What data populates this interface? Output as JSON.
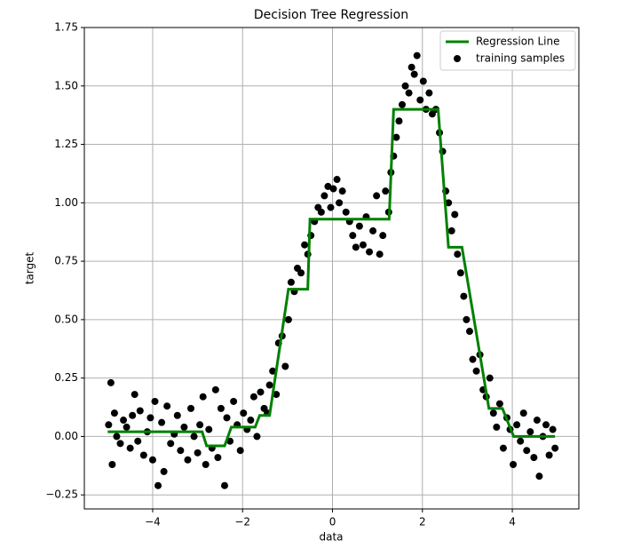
{
  "chart_data": {
    "type": "scatter",
    "title": "Decision Tree Regression",
    "x_label": "data",
    "y_label": "target",
    "xlim": [
      -5.52,
      5.48
    ],
    "ylim": [
      -0.31,
      1.75
    ],
    "xticks": [
      {
        "value": -4,
        "label": "−4"
      },
      {
        "value": -2,
        "label": "−2"
      },
      0,
      2,
      4
    ],
    "yticks": [
      {
        "value": -0.25,
        "label": "−0.25"
      },
      {
        "value": 0,
        "label": "0.00"
      },
      0.25,
      {
        "value": 0.5,
        "label": "0.50"
      },
      0.75,
      {
        "value": 1,
        "label": "1.00"
      },
      1.25,
      {
        "value": 1.5,
        "label": "1.50"
      },
      1.75
    ],
    "grid": true,
    "legend": "upper right",
    "series": [
      {
        "name": "Regression Line",
        "type": "line",
        "color": "#008000",
        "x": [
          -5,
          -2.9,
          -2.8,
          -2.4,
          -2.25,
          -1.72,
          -1.62,
          -1.4,
          -0.98,
          -0.55,
          -0.5,
          1.26,
          1.36,
          2.35,
          2.58,
          2.88,
          3.48,
          3.78,
          4.03,
          4.95
        ],
        "values": [
          0.02,
          0.02,
          -0.04,
          -0.04,
          0.04,
          0.04,
          0.09,
          0.09,
          0.63,
          0.63,
          0.93,
          0.93,
          1.4,
          1.4,
          0.81,
          0.81,
          0.12,
          0.12,
          0.0,
          0.0
        ]
      },
      {
        "name": "training samples",
        "type": "scatter",
        "color": "#000000",
        "x": [
          -4.98,
          -4.93,
          -4.9,
          -4.85,
          -4.8,
          -4.72,
          -4.65,
          -4.58,
          -4.5,
          -4.45,
          -4.4,
          -4.33,
          -4.28,
          -4.2,
          -4.12,
          -4.05,
          -4.0,
          -3.95,
          -3.88,
          -3.8,
          -3.75,
          -3.68,
          -3.6,
          -3.52,
          -3.45,
          -3.38,
          -3.3,
          -3.22,
          -3.15,
          -3.08,
          -3.0,
          -2.95,
          -2.88,
          -2.82,
          -2.75,
          -2.68,
          -2.6,
          -2.55,
          -2.48,
          -2.4,
          -2.35,
          -2.28,
          -2.2,
          -2.12,
          -2.05,
          -1.98,
          -1.9,
          -1.82,
          -1.75,
          -1.68,
          -1.6,
          -1.52,
          -1.45,
          -1.4,
          -1.33,
          -1.25,
          -1.2,
          -1.12,
          -1.05,
          -0.98,
          -0.92,
          -0.85,
          -0.78,
          -0.7,
          -0.62,
          -0.55,
          -0.48,
          -0.4,
          -0.32,
          -0.25,
          -0.18,
          -0.1,
          -0.04,
          0.02,
          0.1,
          0.15,
          0.22,
          0.3,
          0.38,
          0.45,
          0.52,
          0.6,
          0.68,
          0.75,
          0.82,
          0.9,
          0.98,
          1.05,
          1.12,
          1.18,
          1.25,
          1.3,
          1.36,
          1.42,
          1.48,
          1.55,
          1.62,
          1.7,
          1.76,
          1.82,
          1.88,
          1.95,
          2.02,
          2.08,
          2.15,
          2.22,
          2.3,
          2.38,
          2.45,
          2.52,
          2.58,
          2.65,
          2.72,
          2.78,
          2.85,
          2.92,
          2.98,
          3.05,
          3.12,
          3.2,
          3.28,
          3.35,
          3.42,
          3.5,
          3.58,
          3.65,
          3.72,
          3.8,
          3.88,
          3.95,
          4.02,
          4.1,
          4.18,
          4.25,
          4.32,
          4.4,
          4.48,
          4.55,
          4.6,
          4.68,
          4.75,
          4.82,
          4.9,
          4.95
        ],
        "values": [
          0.05,
          0.23,
          -0.12,
          0.1,
          0.0,
          -0.03,
          0.07,
          0.04,
          -0.05,
          0.09,
          0.18,
          -0.02,
          0.11,
          -0.08,
          0.02,
          0.08,
          -0.1,
          0.15,
          -0.21,
          0.06,
          -0.15,
          0.13,
          -0.03,
          0.01,
          0.09,
          -0.06,
          0.04,
          -0.1,
          0.12,
          0.0,
          -0.07,
          0.05,
          0.17,
          -0.12,
          0.03,
          -0.05,
          0.2,
          -0.09,
          0.12,
          -0.21,
          0.08,
          -0.02,
          0.15,
          0.05,
          -0.06,
          0.1,
          0.03,
          0.07,
          0.17,
          0.0,
          0.19,
          0.12,
          0.1,
          0.22,
          0.28,
          0.18,
          0.4,
          0.43,
          0.3,
          0.5,
          0.66,
          0.62,
          0.72,
          0.7,
          0.82,
          0.78,
          0.86,
          0.92,
          0.98,
          0.96,
          1.03,
          1.07,
          0.98,
          1.06,
          1.1,
          1.0,
          1.05,
          0.96,
          0.92,
          0.86,
          0.81,
          0.9,
          0.82,
          0.94,
          0.79,
          0.88,
          1.03,
          0.78,
          0.86,
          1.05,
          0.96,
          1.13,
          1.2,
          1.28,
          1.35,
          1.42,
          1.5,
          1.47,
          1.58,
          1.55,
          1.63,
          1.44,
          1.52,
          1.4,
          1.47,
          1.38,
          1.4,
          1.3,
          1.22,
          1.05,
          1.0,
          0.88,
          0.95,
          0.78,
          0.7,
          0.6,
          0.5,
          0.45,
          0.33,
          0.28,
          0.35,
          0.2,
          0.17,
          0.25,
          0.1,
          0.04,
          0.14,
          -0.05,
          0.08,
          0.03,
          -0.12,
          0.05,
          -0.02,
          0.1,
          -0.06,
          0.02,
          -0.09,
          0.07,
          -0.17,
          0.0,
          0.05,
          -0.08,
          0.03,
          -0.05
        ]
      }
    ]
  }
}
